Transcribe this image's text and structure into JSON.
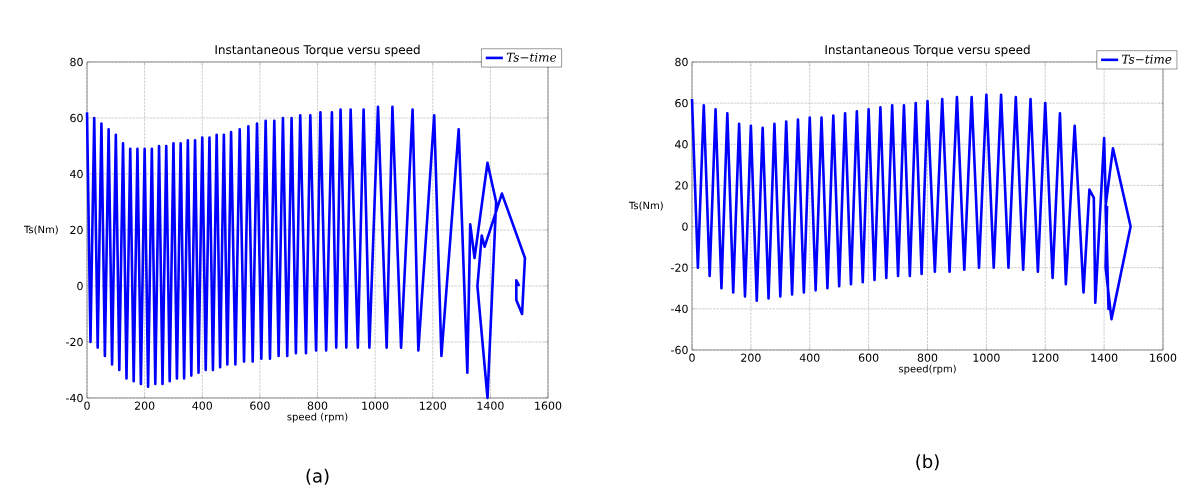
{
  "chart_data": [
    {
      "type": "line",
      "title": "Instantaneous Torque versu speed",
      "xlabel": "speed (rpm)",
      "ylabel": "Ts(Nm)",
      "xlim": [
        0,
        1600
      ],
      "ylim": [
        -40,
        80
      ],
      "xticks": [
        0,
        200,
        400,
        600,
        800,
        1000,
        1200,
        1400,
        1600
      ],
      "yticks": [
        -40,
        -20,
        0,
        20,
        40,
        60,
        80
      ],
      "grid": true,
      "legend": "top right",
      "annotations": [
        "(a)"
      ],
      "series": [
        {
          "name": "Ts−time",
          "color": "#0000ff",
          "x": [
            0,
            12,
            25,
            37,
            50,
            62,
            75,
            87,
            100,
            112,
            125,
            137,
            150,
            162,
            175,
            187,
            200,
            212,
            225,
            237,
            250,
            262,
            275,
            287,
            300,
            312,
            325,
            337,
            350,
            362,
            375,
            387,
            400,
            412,
            425,
            437,
            450,
            462,
            475,
            487,
            500,
            515,
            530,
            545,
            560,
            575,
            590,
            605,
            620,
            635,
            650,
            665,
            680,
            695,
            710,
            725,
            740,
            760,
            775,
            795,
            810,
            830,
            850,
            865,
            880,
            900,
            915,
            940,
            960,
            980,
            1010,
            1040,
            1060,
            1090,
            1130,
            1150,
            1205,
            1230,
            1290,
            1320,
            1330,
            1345,
            1390,
            1420,
            1390,
            1355,
            1370,
            1380,
            1440,
            1520,
            1510,
            1490,
            1490,
            1500
          ],
          "values": [
            62,
            -20,
            60,
            -22,
            58,
            -25,
            56,
            -28,
            54,
            -30,
            51,
            -33,
            49,
            -34,
            49,
            -35,
            49,
            -36,
            49,
            -35,
            50,
            -35,
            50,
            -34,
            51,
            -33,
            51,
            -33,
            52,
            -32,
            52,
            -31,
            53,
            -30,
            53,
            -30,
            54,
            -29,
            54,
            -28,
            55,
            -28,
            56,
            -27,
            57,
            -27,
            58,
            -26,
            59,
            -26,
            59,
            -25,
            60,
            -25,
            60,
            -24,
            61,
            -24,
            61,
            -23,
            62,
            -23,
            62,
            -22,
            63,
            -22,
            63,
            -22,
            63,
            -22,
            64,
            -22,
            64,
            -22,
            63,
            -23,
            61,
            -25,
            56,
            -31,
            22,
            10,
            44,
            30,
            -40,
            0,
            18,
            14,
            33,
            10,
            -10,
            -5,
            2,
            0
          ]
        }
      ]
    },
    {
      "type": "line",
      "title": "Instantaneous Torque versu speed",
      "xlabel": "speed(rpm)",
      "ylabel": "Ts(Nm)",
      "xlim": [
        0,
        1600
      ],
      "ylim": [
        -60,
        80
      ],
      "xticks": [
        0,
        200,
        400,
        600,
        800,
        1000,
        1200,
        1400,
        1600
      ],
      "yticks": [
        -60,
        -40,
        -20,
        0,
        20,
        40,
        60,
        80
      ],
      "grid": true,
      "legend": "top right",
      "annotations": [
        "(b)"
      ],
      "series": [
        {
          "name": "Ts−time",
          "color": "#0000ff",
          "x": [
            0,
            20,
            40,
            60,
            80,
            100,
            120,
            140,
            160,
            180,
            200,
            220,
            240,
            260,
            280,
            300,
            320,
            340,
            360,
            380,
            400,
            420,
            440,
            460,
            480,
            500,
            520,
            540,
            560,
            580,
            600,
            620,
            640,
            660,
            680,
            700,
            720,
            740,
            760,
            780,
            800,
            825,
            850,
            875,
            900,
            925,
            950,
            975,
            1000,
            1025,
            1050,
            1075,
            1100,
            1125,
            1150,
            1175,
            1200,
            1225,
            1250,
            1270,
            1300,
            1330,
            1350,
            1365,
            1370,
            1400,
            1415,
            1405,
            1430,
            1490,
            1425,
            1405,
            1410
          ],
          "values": [
            62,
            -20,
            59,
            -24,
            57,
            -30,
            55,
            -32,
            50,
            -34,
            49,
            -36,
            48,
            -35,
            50,
            -34,
            51,
            -33,
            52,
            -32,
            53,
            -31,
            53,
            -30,
            54,
            -29,
            55,
            -28,
            56,
            -27,
            57,
            -26,
            58,
            -25,
            59,
            -24,
            59,
            -24,
            60,
            -23,
            61,
            -22,
            62,
            -22,
            63,
            -21,
            63,
            -20,
            64,
            -20,
            64,
            -20,
            63,
            -21,
            62,
            -22,
            60,
            -25,
            55,
            -28,
            49,
            -32,
            18,
            14,
            -37,
            43,
            -40,
            10,
            38,
            0,
            -45,
            -20,
            10
          ]
        }
      ]
    }
  ]
}
